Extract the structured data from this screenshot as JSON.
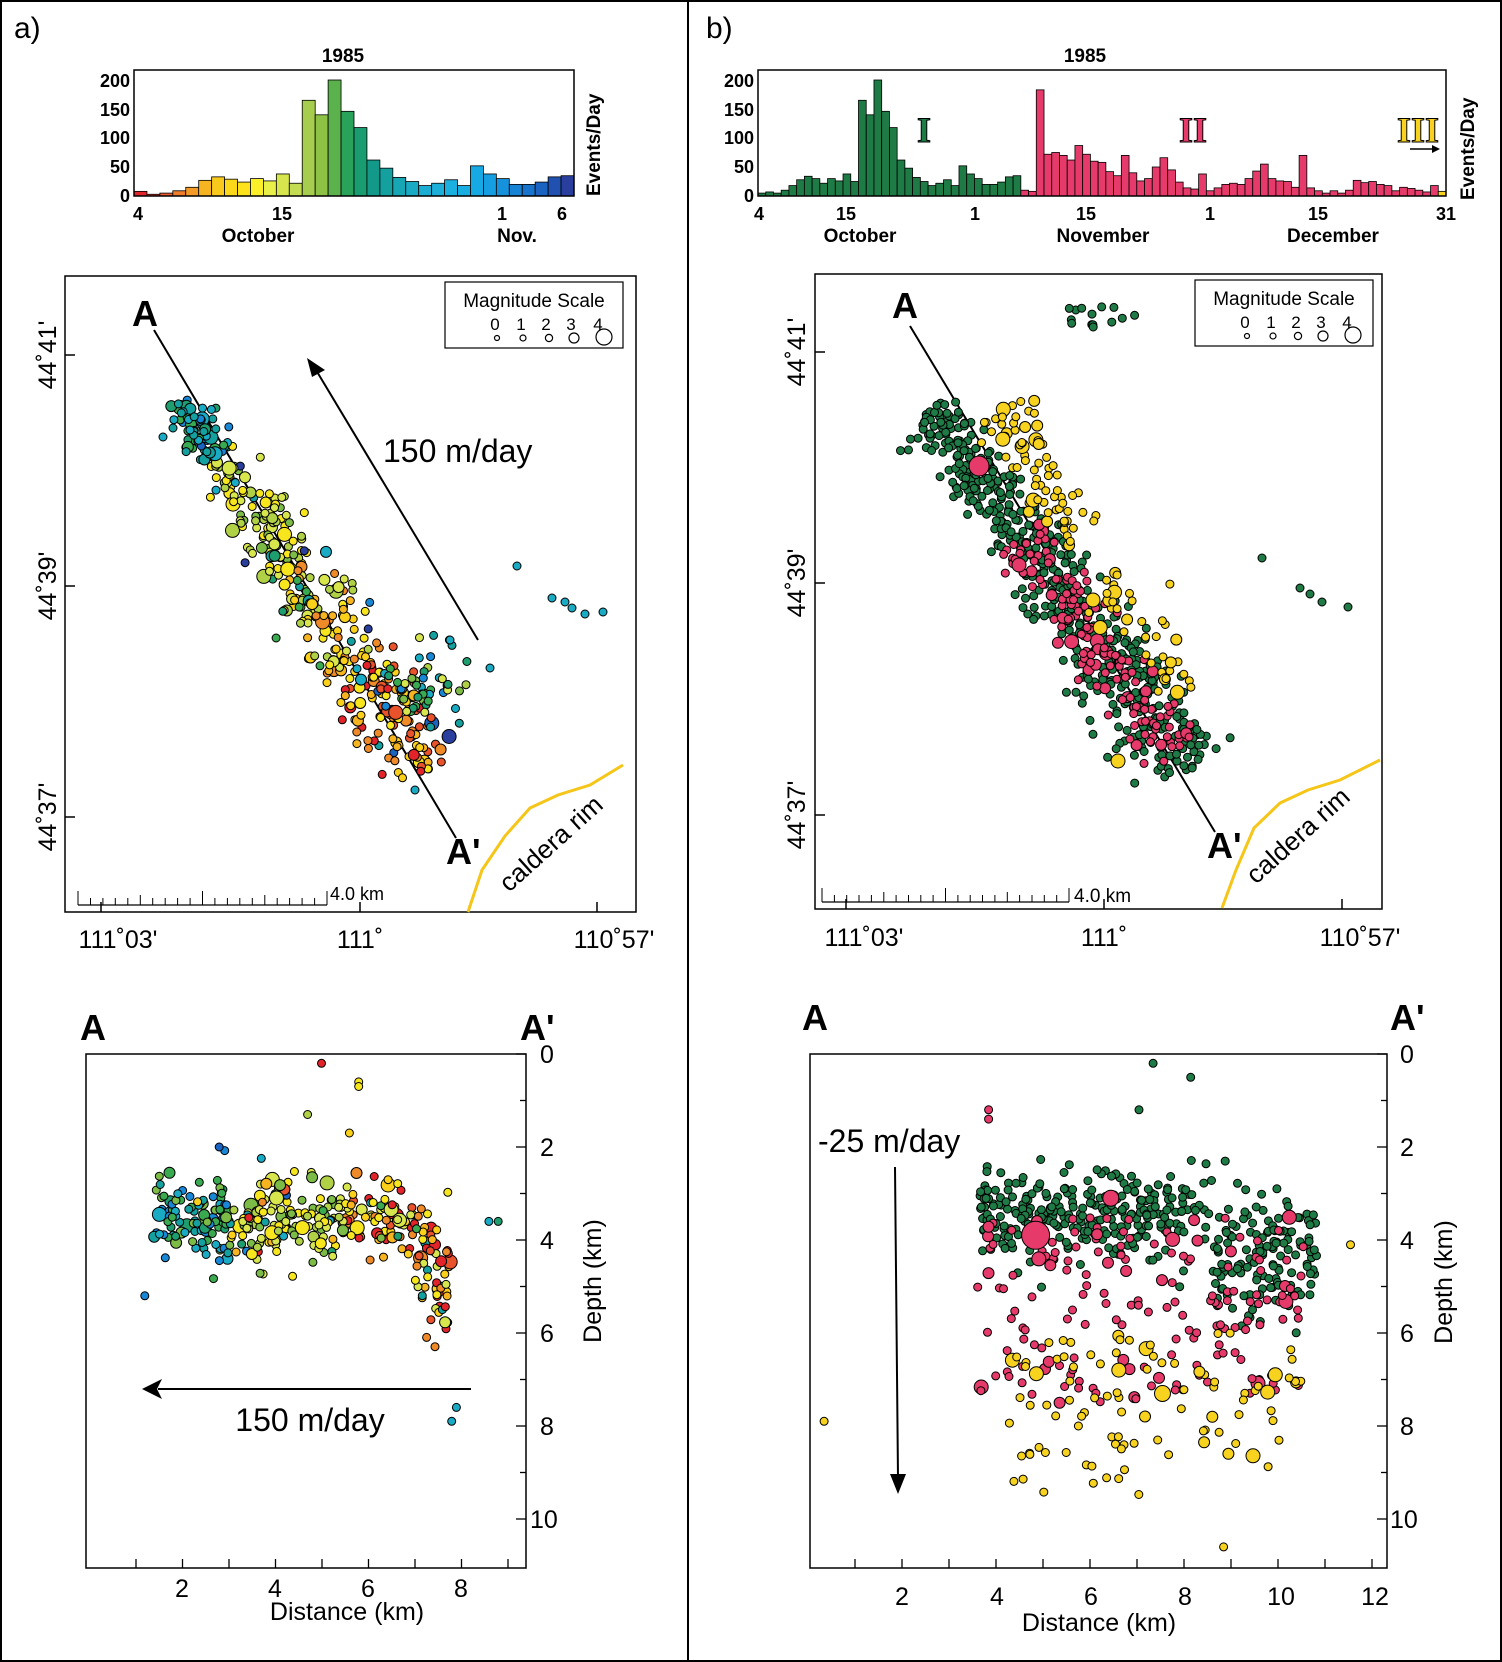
{
  "panel_a": {
    "label": "a)",
    "histogram": {
      "year": "1985",
      "ylabel": "Events/Day",
      "yticks": [
        "0",
        "50",
        "100",
        "150",
        "200"
      ],
      "xticks": [
        "4",
        "15",
        "1",
        "6"
      ],
      "month_labels": [
        "October",
        "Nov."
      ]
    },
    "map": {
      "label_a": "A",
      "label_a_prime": "A'",
      "velocity": "150 m/day",
      "rim_label": "caldera rim",
      "scale_bar": "4.0 km",
      "legend_title": "Magnitude Scale",
      "legend_values": [
        "0",
        "1",
        "2",
        "3",
        "4"
      ],
      "lat_ticks": [
        "44˚41'",
        "44˚39'",
        "44˚37'"
      ],
      "lon_ticks": [
        "111˚03'",
        "111˚",
        "110˚57'"
      ]
    },
    "section": {
      "label_a": "A",
      "label_a_prime": "A'",
      "velocity": "150 m/day",
      "xlabel": "Distance (km)",
      "ylabel": "Depth (km)",
      "xticks": [
        "2",
        "4",
        "6",
        "8"
      ],
      "yticks": [
        "0",
        "2",
        "4",
        "6",
        "8",
        "10"
      ]
    }
  },
  "panel_b": {
    "label": "b)",
    "histogram": {
      "year": "1985",
      "ylabel": "Events/Day",
      "yticks": [
        "0",
        "50",
        "100",
        "150",
        "200"
      ],
      "xticks": [
        "4",
        "15",
        "1",
        "15",
        "1",
        "15",
        "31"
      ],
      "month_labels": [
        "October",
        "November",
        "December"
      ],
      "phase_labels": [
        "I",
        "II",
        "III"
      ]
    },
    "map": {
      "label_a": "A",
      "label_a_prime": "A'",
      "rim_label": "caldera rim",
      "scale_bar": "4.0 km",
      "legend_title": "Magnitude Scale",
      "legend_values": [
        "0",
        "1",
        "2",
        "3",
        "4"
      ],
      "lat_ticks": [
        "44˚41'",
        "44˚39'",
        "44˚37'"
      ],
      "lon_ticks": [
        "111˚03'",
        "111˚",
        "110˚57'"
      ]
    },
    "section": {
      "label_a": "A",
      "label_a_prime": "A'",
      "velocity": "-25 m/day",
      "xlabel": "Distance (km)",
      "ylabel": "Depth (km)",
      "xticks": [
        "2",
        "4",
        "6",
        "8",
        "10",
        "12"
      ],
      "yticks": [
        "0",
        "2",
        "4",
        "6",
        "8",
        "10"
      ]
    }
  },
  "colors": {
    "phase_I": "#1e7b45",
    "phase_II": "#e63a6a",
    "phase_III": "#f7d21e",
    "caldera_rim": "#f5c518"
  },
  "chart_data": [
    {
      "type": "bar",
      "id": "hist_a",
      "x": [
        4,
        5,
        6,
        7,
        8,
        9,
        10,
        11,
        12,
        13,
        14,
        15,
        16,
        17,
        18,
        19,
        20,
        21,
        22,
        23,
        24,
        25,
        26,
        27,
        28,
        29,
        30,
        31,
        32,
        33,
        34,
        35,
        36,
        37
      ],
      "values": [
        8,
        3,
        5,
        9,
        15,
        27,
        33,
        29,
        24,
        30,
        26,
        38,
        22,
        165,
        140,
        200,
        146,
        118,
        62,
        48,
        32,
        25,
        18,
        22,
        28,
        18,
        52,
        38,
        30,
        20,
        20,
        24,
        33,
        35
      ],
      "colors": [
        "#e2242a",
        "#e63a2c",
        "#eb5b2c",
        "#ef7d2a",
        "#f39b26",
        "#f6b520",
        "#f9ca1b",
        "#fbd91a",
        "#fce31b",
        "#fcf02a",
        "#eaf04a",
        "#d8e64e",
        "#c4dc52",
        "#a7cd4e",
        "#8ec244",
        "#5bb14c",
        "#2aa35a",
        "#199c70",
        "#13998a",
        "#15a0a0",
        "#17a6b4",
        "#19abc4",
        "#1badd2",
        "#1cafda",
        "#1ab0e0",
        "#19aee2",
        "#16a9e4",
        "#159fe2",
        "#1691dc",
        "#1783d4",
        "#1873cc",
        "#1b63c0",
        "#2050b0",
        "#2a3e9e"
      ],
      "ylim": [
        0,
        200
      ]
    },
    {
      "type": "bar",
      "id": "hist_b",
      "x": [
        4,
        5,
        6,
        7,
        8,
        9,
        10,
        11,
        12,
        13,
        14,
        15,
        16,
        17,
        18,
        19,
        20,
        21,
        22,
        23,
        24,
        25,
        26,
        27,
        28,
        29,
        30,
        31,
        32,
        33,
        34,
        35,
        36,
        37,
        38,
        39,
        40,
        41,
        42,
        43,
        44,
        45,
        46,
        47,
        48,
        49,
        50,
        51,
        52,
        53,
        54,
        55,
        56,
        57,
        58,
        59,
        60,
        61,
        62,
        63,
        64,
        65,
        66,
        67,
        68,
        69,
        70,
        71,
        72,
        73,
        74,
        75,
        76,
        77,
        78,
        79,
        80,
        81,
        82,
        83,
        84,
        85,
        86,
        87,
        88,
        89,
        90,
        91,
        92
      ],
      "values": [
        5,
        7,
        5,
        10,
        18,
        28,
        34,
        30,
        22,
        30,
        26,
        38,
        25,
        165,
        140,
        200,
        146,
        118,
        62,
        48,
        32,
        25,
        18,
        22,
        28,
        18,
        52,
        38,
        30,
        20,
        20,
        24,
        33,
        35,
        10,
        8,
        183,
        72,
        75,
        70,
        62,
        87,
        72,
        60,
        58,
        42,
        35,
        70,
        40,
        26,
        30,
        50,
        66,
        45,
        24,
        14,
        12,
        38,
        9,
        14,
        20,
        22,
        20,
        30,
        43,
        55,
        30,
        26,
        25,
        15,
        70,
        14,
        9,
        5,
        9,
        5,
        10,
        27,
        23,
        25,
        20,
        18,
        9,
        15,
        13,
        10,
        7,
        18,
        8
      ],
      "colors": [
        "g",
        "g",
        "g",
        "g",
        "g",
        "g",
        "g",
        "g",
        "g",
        "g",
        "g",
        "g",
        "g",
        "g",
        "g",
        "g",
        "g",
        "g",
        "g",
        "g",
        "g",
        "g",
        "g",
        "g",
        "g",
        "g",
        "g",
        "g",
        "g",
        "g",
        "g",
        "g",
        "g",
        "g",
        "r",
        "r",
        "r",
        "r",
        "r",
        "r",
        "r",
        "r",
        "r",
        "r",
        "r",
        "r",
        "r",
        "r",
        "r",
        "r",
        "r",
        "r",
        "r",
        "r",
        "r",
        "r",
        "r",
        "r",
        "r",
        "r",
        "r",
        "r",
        "r",
        "r",
        "r",
        "r",
        "r",
        "r",
        "r",
        "r",
        "r",
        "r",
        "r",
        "r",
        "r",
        "r",
        "r",
        "r",
        "r",
        "r",
        "r",
        "r",
        "r",
        "r",
        "r",
        "r",
        "r",
        "r",
        "y"
      ],
      "ylim": [
        0,
        200
      ]
    }
  ]
}
